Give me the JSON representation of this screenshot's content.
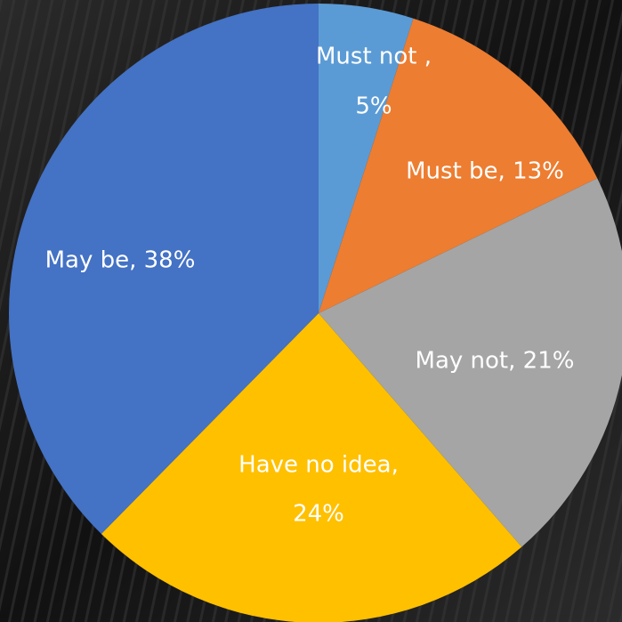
{
  "chart_data": {
    "type": "pie",
    "values": [
      5,
      13,
      21,
      24,
      38
    ],
    "value_labels": [
      [
        "Must not ,",
        "5%"
      ],
      [
        "Must be, 13%"
      ],
      [
        "May not, 21%"
      ],
      [
        "Have no idea,",
        "24%"
      ],
      [
        "May be, 38%"
      ]
    ],
    "colors": [
      "#5b9bd5",
      "#ed7d31",
      "#a5a5a5",
      "#ffc000",
      "#4472c4"
    ],
    "start_angle": 0,
    "direction": "clockwise"
  }
}
